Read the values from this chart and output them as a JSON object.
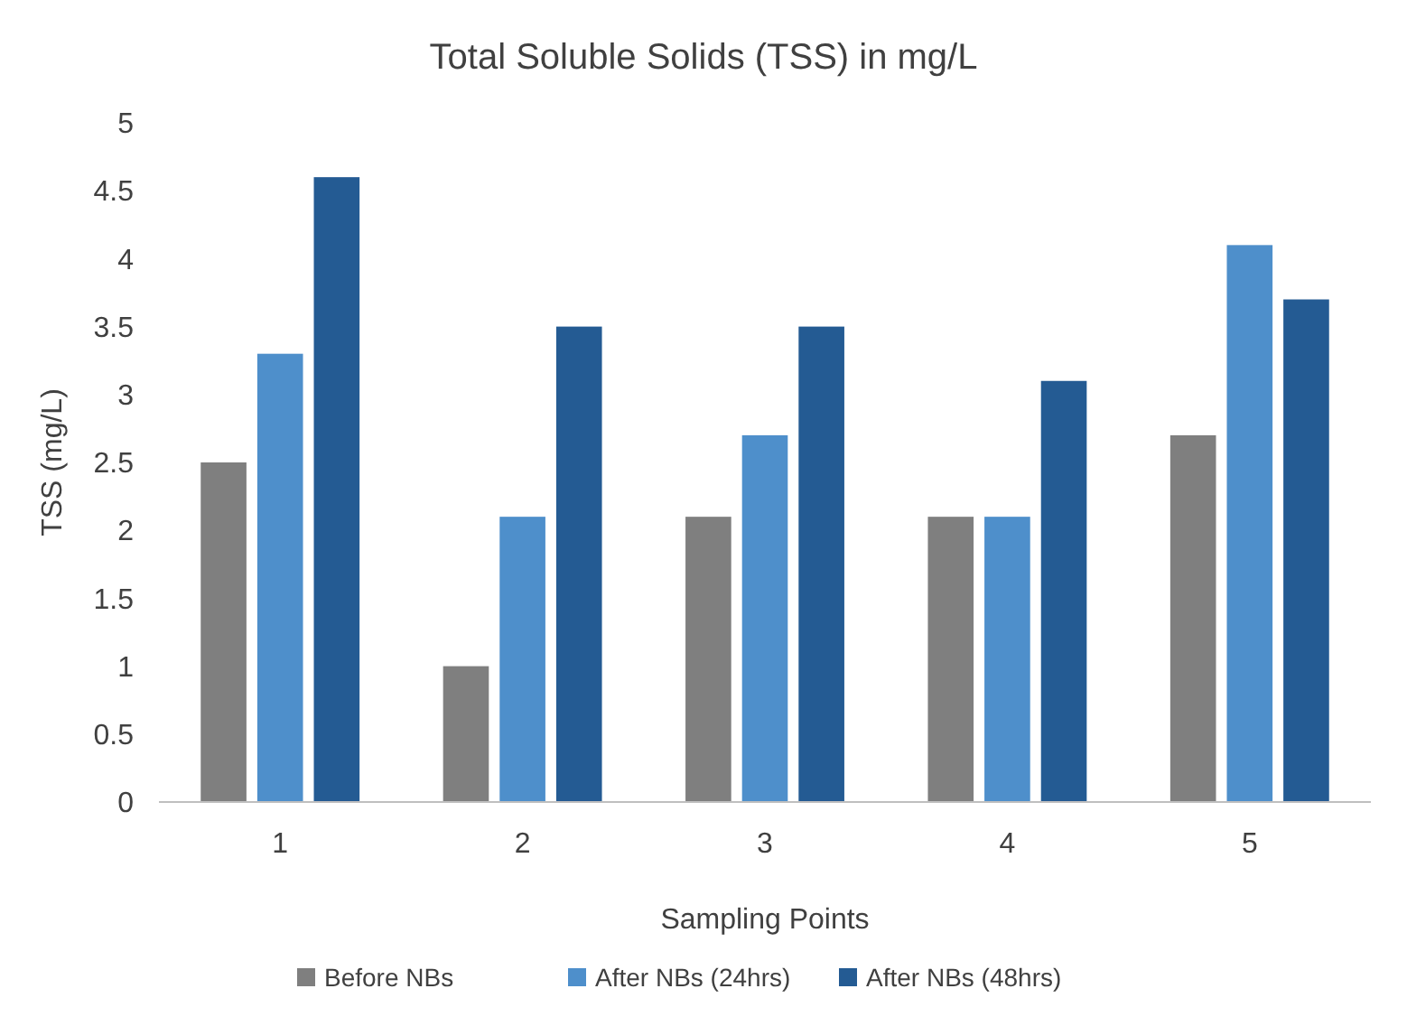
{
  "chart_data": {
    "type": "bar",
    "title": "Total Soluble Solids (TSS) in mg/L",
    "xlabel": "Sampling Points",
    "ylabel": "TSS (mg/L)",
    "categories": [
      "1",
      "2",
      "3",
      "4",
      "5"
    ],
    "series": [
      {
        "name": "Before NBs",
        "color": "#7f7f7f",
        "values": [
          2.5,
          1.0,
          2.1,
          2.1,
          2.7
        ]
      },
      {
        "name": "After NBs (24hrs)",
        "color": "#4e8fcb",
        "values": [
          3.3,
          2.1,
          2.7,
          2.1,
          4.1
        ]
      },
      {
        "name": "After NBs (48hrs)",
        "color": "#245b93",
        "values": [
          4.6,
          3.5,
          3.5,
          3.1,
          3.7
        ]
      }
    ],
    "ylim": [
      0,
      5
    ],
    "yticks": [
      0,
      {
        "value": 0.5,
        "label": "0.5"
      },
      1,
      {
        "value": 1.5,
        "label": "1.5"
      },
      2,
      {
        "value": 2.5,
        "label": "2.5"
      },
      3,
      {
        "value": 3.5,
        "label": "3.5"
      },
      4,
      {
        "value": 4.5,
        "label": "4.5"
      },
      5
    ],
    "grid": false,
    "legend": "bottom"
  }
}
